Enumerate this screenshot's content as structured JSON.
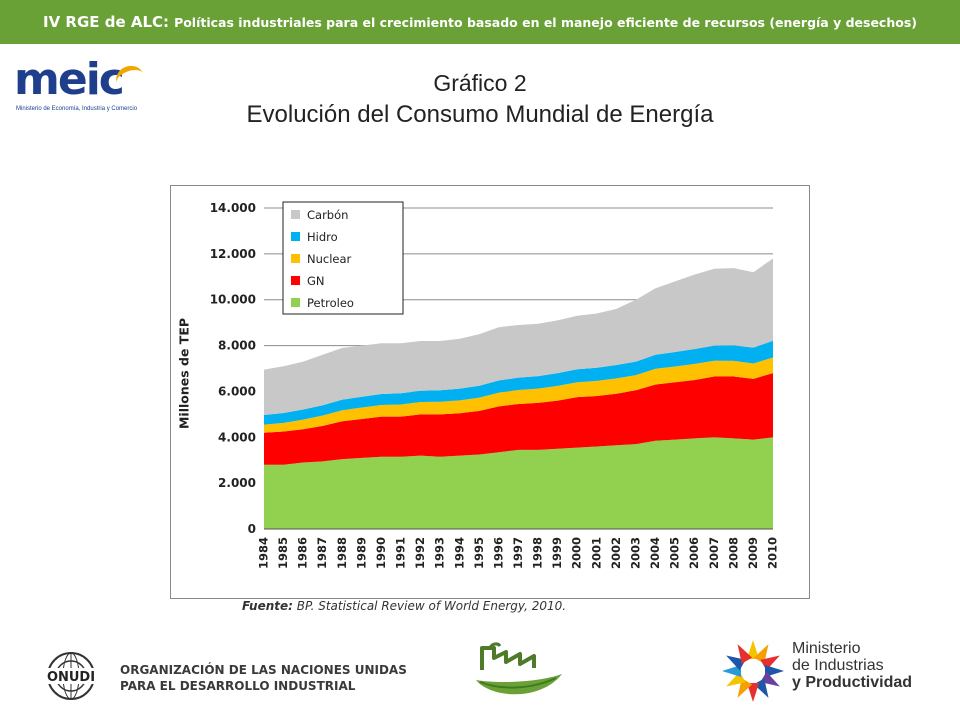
{
  "header": {
    "main": "IV RGE de ALC:",
    "sub": "Políticas industriales para el crecimiento basado en el manejo eficiente de recursos  (energía y desechos)"
  },
  "logo_meic": {
    "word": "meic",
    "tagline": "Ministerio de Economía, Industria y Comercio"
  },
  "title_line1": "Gráfico 2",
  "title_line2": "Evolución del Consumo Mundial de Energía",
  "source": {
    "label": "Fuente:",
    "text": " BP. Statistical Review of World Energy, 2010."
  },
  "footer": {
    "onudi_seal": "ONUDI",
    "onudi_line1": "ORGANIZACIÓN DE LAS NACIONES UNIDAS",
    "onudi_line2": "PARA EL DESARROLLO INDUSTRIAL",
    "ministerio_line1": "Ministerio",
    "ministerio_line2": "de Industrias",
    "ministerio_line3": "y Productividad"
  },
  "colors": {
    "header_bg": "#6aa137",
    "Petroleo": "#92d050",
    "GN": "#ff0000",
    "Nuclear": "#ffc000",
    "Hidro": "#00b0f0",
    "Carbon": "#c8c8c8"
  },
  "chart_data": {
    "type": "area",
    "stacked": true,
    "ylabel": "Millones de TEP",
    "ylim": [
      0,
      14000
    ],
    "yticks": [
      "0",
      "2.000",
      "4.000",
      "6.000",
      "8.000",
      "10.000",
      "12.000",
      "14.000"
    ],
    "grid": true,
    "legend_position": "top-left",
    "categories": [
      "1984",
      "1985",
      "1986",
      "1987",
      "1988",
      "1989",
      "1990",
      "1991",
      "1992",
      "1993",
      "1994",
      "1995",
      "1996",
      "1997",
      "1998",
      "1999",
      "2000",
      "2001",
      "2002",
      "2003",
      "2004",
      "2005",
      "2006",
      "2007",
      "2008",
      "2009",
      "2010"
    ],
    "series": [
      {
        "name": "Petroleo",
        "values": [
          2800,
          2800,
          2900,
          2950,
          3050,
          3100,
          3150,
          3150,
          3200,
          3150,
          3200,
          3250,
          3350,
          3450,
          3450,
          3500,
          3550,
          3600,
          3650,
          3700,
          3850,
          3900,
          3950,
          4000,
          3950,
          3900,
          4000
        ]
      },
      {
        "name": "GN",
        "values": [
          1400,
          1450,
          1450,
          1550,
          1650,
          1700,
          1750,
          1750,
          1800,
          1850,
          1850,
          1900,
          2000,
          2000,
          2050,
          2100,
          2200,
          2200,
          2250,
          2350,
          2450,
          2500,
          2550,
          2650,
          2700,
          2650,
          2800
        ]
      },
      {
        "name": "Nuclear",
        "values": [
          350,
          380,
          420,
          450,
          480,
          500,
          510,
          530,
          540,
          550,
          560,
          580,
          600,
          610,
          620,
          640,
          650,
          660,
          670,
          660,
          690,
          690,
          700,
          690,
          680,
          670,
          680
        ]
      },
      {
        "name": "Hidro",
        "values": [
          420,
          430,
          440,
          450,
          460,
          470,
          480,
          490,
          490,
          500,
          510,
          520,
          530,
          540,
          550,
          560,
          570,
          570,
          580,
          590,
          610,
          630,
          650,
          660,
          680,
          690,
          730
        ]
      },
      {
        "name": "Carbón",
        "values": [
          1980,
          2040,
          2090,
          2200,
          2260,
          2230,
          2210,
          2180,
          2170,
          2150,
          2180,
          2250,
          2320,
          2300,
          2280,
          2300,
          2330,
          2370,
          2450,
          2700,
          2900,
          3080,
          3250,
          3350,
          3370,
          3290,
          3590
        ]
      }
    ]
  }
}
